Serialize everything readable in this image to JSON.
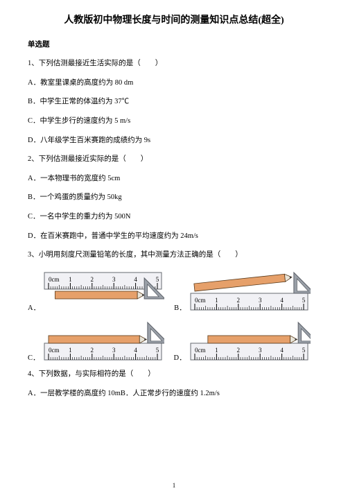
{
  "title": "人教版初中物理长度与时间的测量知识点总结(超全)",
  "section": "单选题",
  "q1": {
    "stem": "1、下列估测最接近生活实际的是（　　）",
    "A": "A．教室里课桌的高度约为 80 dm",
    "B": "B．中学生正常的体温约为 37℃",
    "C": "C．中学生步行的速度约为 5 m/s",
    "D": "D．八年级学生百米赛跑的成绩约为 9s"
  },
  "q2": {
    "stem": "2、下列估测最接近实际的是（　　）",
    "A": "A．一本物理书的宽度约 5cm",
    "B": "B．一个鸡蛋的质量约为 50kg",
    "C": "C．一名中学生的重力约为 500N",
    "D": "D．在百米赛跑中，普通中学生的平均速度约为 24m/s"
  },
  "q3": {
    "stem": "3、小明用刻度尺测量铅笔的长度，其中测量方法正确的是（　　）",
    "labels": {
      "A": "A．",
      "B": "B．",
      "C": "C．",
      "D": "D．"
    }
  },
  "q4": {
    "stem": "4、下列数据，与实际相符的是（　　）",
    "A": "A．一层教学楼的高度约 10mB．人正常步行的速度约 1.2m/s"
  },
  "ruler": {
    "labels": [
      "0cm",
      "1",
      "2",
      "3",
      "4",
      "5"
    ],
    "label_fontsize": 9,
    "major_ticks": 6,
    "minor_per_major": 10,
    "body_color": "#f1f1f5",
    "edge_color": "#666a70",
    "tick_color": "#000000"
  },
  "pencil": {
    "body_color": "#e6a06a",
    "tip_color": "#e8e4d8",
    "lead_color": "#3a3a3a",
    "outline": "#5a3a1a"
  },
  "triangle": {
    "fill": "#9aa0a8",
    "stroke": "#5c6168",
    "hole_fill": "#ffffff"
  },
  "page_number": "1"
}
